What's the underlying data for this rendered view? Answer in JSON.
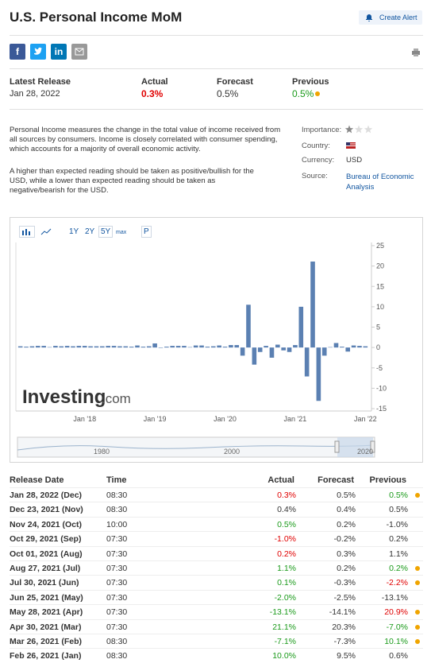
{
  "header": {
    "title": "U.S. Personal Income MoM",
    "alert_button": "Create Alert",
    "share": [
      "f",
      "in"
    ]
  },
  "release": {
    "labels": [
      "Latest Release",
      "Actual",
      "Forecast",
      "Previous"
    ],
    "date": "Jan 28, 2022",
    "actual": "0.3%",
    "forecast": "0.5%",
    "previous": "0.5%"
  },
  "description": [
    "Personal Income measures the change in the total value of income received from all sources by consumers. Income is closely correlated with consumer spending, which accounts for a majority of overall economic activity.",
    "A higher than expected reading should be taken as positive/bullish for the USD, while a lower than expected reading should be taken as negative/bearish for the USD."
  ],
  "info": {
    "importance_label": "Importance:",
    "importance_stars": 1,
    "importance_max": 3,
    "country_label": "Country:",
    "currency_label": "Currency:",
    "currency": "USD",
    "source_label": "Source:",
    "source": "Bureau of Economic Analysis"
  },
  "toolbar": [
    "1Y",
    "2Y",
    "5Y",
    "max",
    "P"
  ],
  "brand": [
    "Investing",
    ".com"
  ],
  "navigator_labels": [
    "1980",
    "2000",
    "2020"
  ],
  "chart_data": {
    "type": "bar",
    "color": "#5b80b2",
    "categories": [
      null,
      null,
      null,
      null,
      null,
      null,
      null,
      null,
      null,
      null,
      null,
      "Jan '18",
      null,
      null,
      null,
      null,
      null,
      null,
      null,
      null,
      null,
      null,
      null,
      "Jan '19",
      null,
      null,
      null,
      null,
      null,
      null,
      null,
      null,
      null,
      null,
      null,
      "Jan '20",
      null,
      null,
      null,
      null,
      null,
      null,
      null,
      null,
      null,
      null,
      null,
      "Jan '21",
      null,
      null,
      null,
      null,
      null,
      null,
      null,
      null,
      null,
      null,
      null,
      "Jan '22"
    ],
    "values": [
      0.3,
      0.2,
      0.3,
      0.4,
      0.4,
      0.1,
      0.4,
      0.3,
      0.4,
      0.3,
      0.4,
      0.4,
      0.3,
      0.3,
      0.3,
      0.4,
      0.4,
      0.3,
      0.3,
      0.2,
      0.5,
      0.2,
      0.3,
      1.0,
      -0.1,
      0.2,
      0.4,
      0.4,
      0.4,
      0.1,
      0.5,
      0.5,
      0.2,
      0.3,
      0.5,
      0.2,
      0.6,
      0.6,
      -2.0,
      10.5,
      -4.2,
      -1.1,
      0.4,
      -2.5,
      0.7,
      -0.7,
      -1.1,
      0.6,
      10.0,
      -7.1,
      21.1,
      -13.1,
      -2.0,
      0.1,
      1.1,
      0.2,
      -1.0,
      0.5,
      0.4,
      0.3
    ],
    "ylim": [
      -15,
      25
    ],
    "yticks": [
      25,
      20,
      15,
      10,
      5,
      0,
      -5,
      -10,
      -15
    ]
  },
  "table": {
    "headers": [
      "Release Date",
      "Time",
      "Actual",
      "Forecast",
      "Previous"
    ],
    "rows": [
      {
        "date": "Jan 28, 2022 (Dec)",
        "time": "08:30",
        "actual": "0.3%",
        "forecast": "0.5%",
        "previous": "0.5%",
        "actual_color": "#e00000",
        "previous_color": "#1a9a1a",
        "revised": true
      },
      {
        "date": "Dec 23, 2021 (Nov)",
        "time": "08:30",
        "actual": "0.4%",
        "forecast": "0.4%",
        "previous": "0.5%",
        "actual_color": "#333333",
        "previous_color": "#333333",
        "revised": false
      },
      {
        "date": "Nov 24, 2021 (Oct)",
        "time": "10:00",
        "actual": "0.5%",
        "forecast": "0.2%",
        "previous": "-1.0%",
        "actual_color": "#1a9a1a",
        "previous_color": "#333333",
        "revised": false
      },
      {
        "date": "Oct 29, 2021 (Sep)",
        "time": "07:30",
        "actual": "-1.0%",
        "forecast": "-0.2%",
        "previous": "0.2%",
        "actual_color": "#e00000",
        "previous_color": "#333333",
        "revised": false
      },
      {
        "date": "Oct 01, 2021 (Aug)",
        "time": "07:30",
        "actual": "0.2%",
        "forecast": "0.3%",
        "previous": "1.1%",
        "actual_color": "#e00000",
        "previous_color": "#333333",
        "revised": false
      },
      {
        "date": "Aug 27, 2021 (Jul)",
        "time": "07:30",
        "actual": "1.1%",
        "forecast": "0.2%",
        "previous": "0.2%",
        "actual_color": "#1a9a1a",
        "previous_color": "#1a9a1a",
        "revised": true
      },
      {
        "date": "Jul 30, 2021 (Jun)",
        "time": "07:30",
        "actual": "0.1%",
        "forecast": "-0.3%",
        "previous": "-2.2%",
        "actual_color": "#1a9a1a",
        "previous_color": "#e00000",
        "revised": true
      },
      {
        "date": "Jun 25, 2021 (May)",
        "time": "07:30",
        "actual": "-2.0%",
        "forecast": "-2.5%",
        "previous": "-13.1%",
        "actual_color": "#1a9a1a",
        "previous_color": "#333333",
        "revised": false
      },
      {
        "date": "May 28, 2021 (Apr)",
        "time": "07:30",
        "actual": "-13.1%",
        "forecast": "-14.1%",
        "previous": "20.9%",
        "actual_color": "#1a9a1a",
        "previous_color": "#e00000",
        "revised": true
      },
      {
        "date": "Apr 30, 2021 (Mar)",
        "time": "07:30",
        "actual": "21.1%",
        "forecast": "20.3%",
        "previous": "-7.0%",
        "actual_color": "#1a9a1a",
        "previous_color": "#1a9a1a",
        "revised": true
      },
      {
        "date": "Mar 26, 2021 (Feb)",
        "time": "08:30",
        "actual": "-7.1%",
        "forecast": "-7.3%",
        "previous": "10.1%",
        "actual_color": "#1a9a1a",
        "previous_color": "#1a9a1a",
        "revised": true
      },
      {
        "date": "Feb 26, 2021 (Jan)",
        "time": "08:30",
        "actual": "10.0%",
        "forecast": "9.5%",
        "previous": "0.6%",
        "actual_color": "#1a9a1a",
        "previous_color": "#333333",
        "revised": false
      }
    ]
  }
}
